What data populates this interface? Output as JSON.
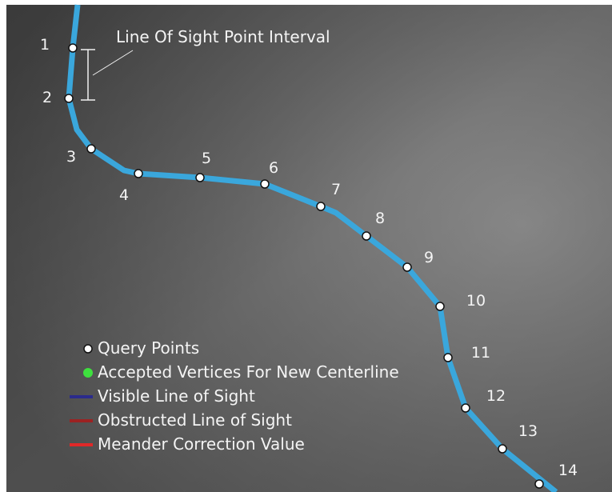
{
  "annotation": "Line Of Sight Point Interval",
  "points": [
    {
      "label": "1"
    },
    {
      "label": "2"
    },
    {
      "label": "3"
    },
    {
      "label": "4"
    },
    {
      "label": "5"
    },
    {
      "label": "6"
    },
    {
      "label": "7"
    },
    {
      "label": "8"
    },
    {
      "label": "9"
    },
    {
      "label": "10"
    },
    {
      "label": "11"
    },
    {
      "label": "12"
    },
    {
      "label": "13"
    },
    {
      "label": "14"
    }
  ],
  "legend": [
    {
      "label": "Query Points"
    },
    {
      "label": "Accepted Vertices For New Centerline"
    },
    {
      "label": "Visible Line of Sight"
    },
    {
      "label": "Obstructed Line of Sight"
    },
    {
      "label": "Meander Correction Value"
    }
  ]
}
